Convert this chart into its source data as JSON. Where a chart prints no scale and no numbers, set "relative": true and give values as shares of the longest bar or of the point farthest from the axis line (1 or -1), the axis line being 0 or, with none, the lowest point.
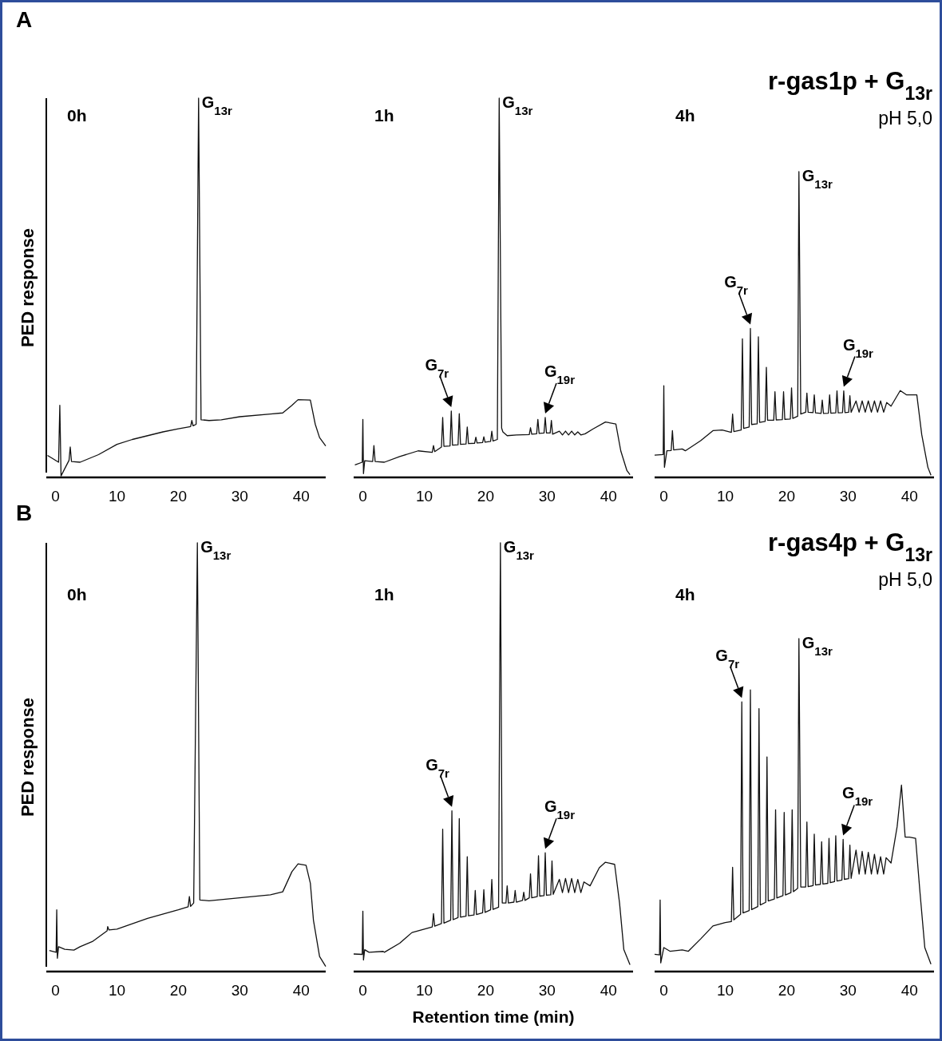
{
  "chart_data": [
    {
      "type": "line",
      "title": "0h",
      "ylabel": "PED response",
      "relative": true,
      "tick_labels": "x",
      "xlim": [
        -1.5,
        44
      ],
      "xticks": [
        0,
        10,
        20,
        30,
        40
      ],
      "series": [
        {
          "color": "#111111",
          "x": [
            -1.3,
            -0.5,
            0.5,
            0.7,
            0.9,
            2.2,
            2.4,
            2.6,
            4,
            7,
            10,
            12.5,
            15,
            17.5,
            20,
            22,
            22.2,
            22.4,
            22.9,
            23.3,
            23.7,
            25,
            27,
            30,
            35,
            37,
            38.5,
            39.5,
            41.5,
            42.3,
            43,
            44
          ],
          "values": [
            0.058,
            0.05,
            0.04,
            0.19,
            0.004,
            0.045,
            0.08,
            0.042,
            0.04,
            0.06,
            0.087,
            0.1,
            0.11,
            0.12,
            0.128,
            0.134,
            0.15,
            0.136,
            0.14,
            1.0,
            0.152,
            0.15,
            0.152,
            0.16,
            0.167,
            0.17,
            0.19,
            0.205,
            0.204,
            0.14,
            0.105,
            0.083
          ]
        }
      ],
      "annotations": [
        "A",
        {
          "text": "G$_{13r}$",
          "x": 23.3,
          "y": 1.0
        }
      ]
    },
    {
      "type": "line",
      "title": "1h",
      "relative": true,
      "tick_labels": "x",
      "xlim": [
        -1.5,
        44
      ],
      "xticks": [
        0,
        10,
        20,
        30,
        40
      ],
      "series": [
        {
          "color": "#111111",
          "x": [
            -1.3,
            -0.1,
            0,
            0.1,
            0.3,
            1.6,
            1.8,
            2,
            3.5,
            6,
            9,
            11.3,
            11.5,
            11.7,
            12.8,
            13,
            13.2,
            14.2,
            14.4,
            14.6,
            15.5,
            15.7,
            15.9,
            16.8,
            17,
            17.2,
            18.2,
            18.4,
            18.6,
            19.5,
            19.7,
            19.9,
            20.8,
            21,
            21.2,
            21.9,
            22.2,
            22.6,
            22.8,
            23.5,
            25,
            27.1,
            27.3,
            27.5,
            28.3,
            28.5,
            28.7,
            29.5,
            29.7,
            29.9,
            30.5,
            30.7,
            30.9,
            32,
            32.5,
            33,
            33.5,
            34,
            34.5,
            35,
            35.5,
            36.2,
            37.5,
            39.5,
            41.2,
            42,
            43,
            43.5
          ],
          "values": [
            0.033,
            0.04,
            0.153,
            0.01,
            0.044,
            0.042,
            0.084,
            0.042,
            0.04,
            0.055,
            0.07,
            0.066,
            0.084,
            0.068,
            0.08,
            0.158,
            0.082,
            0.083,
            0.175,
            0.085,
            0.086,
            0.168,
            0.087,
            0.088,
            0.133,
            0.089,
            0.09,
            0.106,
            0.091,
            0.092,
            0.107,
            0.093,
            0.095,
            0.122,
            0.096,
            0.1,
            1.0,
            0.13,
            0.12,
            0.11,
            0.112,
            0.113,
            0.131,
            0.114,
            0.115,
            0.153,
            0.116,
            0.117,
            0.158,
            0.117,
            0.117,
            0.15,
            0.114,
            0.122,
            0.112,
            0.122,
            0.112,
            0.122,
            0.112,
            0.12,
            0.112,
            0.115,
            0.128,
            0.146,
            0.141,
            0.07,
            0.018,
            0.007
          ]
        }
      ],
      "annotations": [
        {
          "text": "G$_{13r}$",
          "x": 22.2,
          "y": 1.0
        },
        {
          "text": "G$_{7r}$",
          "x": 14.4,
          "y": 0.175
        },
        {
          "text": "G$_{19r}$",
          "x": 29.7,
          "y": 0.158
        }
      ]
    },
    {
      "type": "line",
      "title": "4h",
      "relative": true,
      "tick_labels": "x",
      "xlim": [
        -1.5,
        44
      ],
      "xticks": [
        0,
        10,
        20,
        30,
        40
      ],
      "series": [
        {
          "color": "#111111",
          "x": [
            -1.5,
            -0.1,
            0,
            0.1,
            0.5,
            1.2,
            1.4,
            1.6,
            3,
            3.5,
            6,
            8,
            9.5,
            11,
            11.2,
            11.4,
            12.6,
            12.8,
            13,
            13.9,
            14.1,
            14.3,
            15.2,
            15.4,
            15.6,
            16.5,
            16.7,
            16.9,
            17.9,
            18.1,
            18.3,
            19.3,
            19.5,
            19.7,
            20.6,
            20.8,
            21,
            21.8,
            22,
            22.3,
            23.1,
            23.3,
            23.5,
            24.3,
            24.5,
            24.7,
            25.6,
            25.8,
            26,
            26.8,
            27,
            27.2,
            28,
            28.2,
            28.4,
            29.1,
            29.3,
            29.5,
            30.1,
            30.3,
            30.5,
            31.3,
            31.8,
            32.3,
            32.8,
            33.3,
            33.8,
            34.3,
            34.8,
            35.3,
            35.8,
            36.3,
            37,
            38.5,
            39.5,
            41.2,
            42,
            43,
            43.5
          ],
          "values": [
            0.073,
            0.075,
            0.3,
            0.033,
            0.087,
            0.088,
            0.153,
            0.09,
            0.093,
            0.087,
            0.12,
            0.153,
            0.155,
            0.147,
            0.207,
            0.15,
            0.155,
            0.453,
            0.16,
            0.165,
            0.487,
            0.173,
            0.175,
            0.46,
            0.18,
            0.183,
            0.36,
            0.187,
            0.187,
            0.28,
            0.188,
            0.189,
            0.28,
            0.19,
            0.191,
            0.293,
            0.193,
            0.2,
            1.0,
            0.207,
            0.213,
            0.276,
            0.213,
            0.212,
            0.27,
            0.211,
            0.209,
            0.253,
            0.209,
            0.21,
            0.27,
            0.21,
            0.211,
            0.283,
            0.211,
            0.212,
            0.283,
            0.212,
            0.213,
            0.267,
            0.213,
            0.25,
            0.213,
            0.25,
            0.213,
            0.25,
            0.213,
            0.25,
            0.213,
            0.25,
            0.213,
            0.245,
            0.233,
            0.284,
            0.27,
            0.27,
            0.14,
            0.033,
            0.007
          ]
        }
      ],
      "annotations": [
        "r-gas1p + G$_{13r}$",
        "pH 5,0",
        {
          "text": "G$_{13r}$",
          "x": 22,
          "y": 1.0
        },
        {
          "text": "G$_{7r}$",
          "x": 14.1,
          "y": 0.487
        },
        {
          "text": "G$_{19r}$",
          "x": 29.3,
          "y": 0.283
        }
      ]
    },
    {
      "type": "line",
      "title": "0h",
      "ylabel": "PED response",
      "relative": true,
      "tick_labels": "x",
      "xlim": [
        -1.5,
        44
      ],
      "xticks": [
        0,
        10,
        20,
        30,
        40
      ],
      "series": [
        {
          "color": "#111111",
          "x": [
            -1,
            0.1,
            0.2,
            0.3,
            0.5,
            1.5,
            3,
            4,
            6,
            8.4,
            8.5,
            8.7,
            10,
            15,
            20,
            21.6,
            21.8,
            22,
            22.5,
            23.1,
            23.5,
            25,
            30,
            35,
            37,
            38.5,
            39.5,
            40.8,
            41.5,
            42,
            43,
            44
          ],
          "values": [
            0.049,
            0.045,
            0.144,
            0.031,
            0.058,
            0.052,
            0.05,
            0.058,
            0.07,
            0.095,
            0.105,
            0.097,
            0.099,
            0.124,
            0.144,
            0.151,
            0.175,
            0.152,
            0.16,
            1.0,
            0.167,
            0.165,
            0.172,
            0.179,
            0.186,
            0.233,
            0.251,
            0.248,
            0.206,
            0.12,
            0.035,
            0.012
          ]
        }
      ],
      "annotations": [
        "B",
        {
          "text": "G$_{13r}$",
          "x": 23.1,
          "y": 1.0
        }
      ]
    },
    {
      "type": "line",
      "title": "1h",
      "xlabel": "Retention time (min)",
      "relative": true,
      "tick_labels": "x",
      "xlim": [
        -1.5,
        44
      ],
      "xticks": [
        0,
        10,
        20,
        30,
        40
      ],
      "series": [
        {
          "color": "#111111",
          "x": [
            -1.5,
            -0.1,
            0,
            0.1,
            0.3,
            1,
            3.3,
            3.5,
            6,
            8,
            10,
            11.3,
            11.5,
            11.7,
            12.8,
            13,
            13.2,
            14.3,
            14.5,
            14.7,
            15.5,
            15.7,
            15.9,
            16.8,
            17,
            17.2,
            18.1,
            18.3,
            18.5,
            19.5,
            19.7,
            19.9,
            20.8,
            21,
            21.2,
            22.1,
            22.4,
            22.7,
            23.3,
            23.5,
            23.7,
            24.6,
            24.8,
            25,
            26,
            26.2,
            26.4,
            27.1,
            27.3,
            27.5,
            28.4,
            28.6,
            28.8,
            29.5,
            29.7,
            29.9,
            30.6,
            30.8,
            31,
            32,
            32.5,
            33,
            33.5,
            34,
            34.5,
            35,
            35.5,
            36,
            37,
            38.5,
            39.5,
            41,
            41.8,
            42.5,
            43.5
          ],
          "values": [
            0.041,
            0.04,
            0.141,
            0.027,
            0.051,
            0.045,
            0.047,
            0.045,
            0.066,
            0.091,
            0.099,
            0.104,
            0.135,
            0.106,
            0.112,
            0.332,
            0.113,
            0.12,
            0.375,
            0.121,
            0.126,
            0.357,
            0.127,
            0.129,
            0.268,
            0.13,
            0.132,
            0.189,
            0.133,
            0.137,
            0.191,
            0.138,
            0.144,
            0.215,
            0.145,
            0.15,
            1.0,
            0.16,
            0.16,
            0.2,
            0.16,
            0.162,
            0.189,
            0.162,
            0.166,
            0.185,
            0.166,
            0.172,
            0.228,
            0.172,
            0.175,
            0.27,
            0.176,
            0.177,
            0.277,
            0.178,
            0.179,
            0.258,
            0.18,
            0.215,
            0.184,
            0.217,
            0.184,
            0.217,
            0.184,
            0.215,
            0.184,
            0.209,
            0.2,
            0.242,
            0.255,
            0.25,
            0.16,
            0.051,
            0.016
          ]
        }
      ],
      "annotations": [
        {
          "text": "G$_{13r}$",
          "x": 22.4,
          "y": 1.0
        },
        {
          "text": "G$_{7r}$",
          "x": 14.5,
          "y": 0.375
        },
        {
          "text": "G$_{19r}$",
          "x": 29.7,
          "y": 0.277
        }
      ]
    },
    {
      "type": "line",
      "title": "4h",
      "relative": true,
      "tick_labels": "x",
      "xlim": [
        -1.5,
        44
      ],
      "xticks": [
        0,
        10,
        20,
        30,
        40
      ],
      "series": [
        {
          "color": "#111111",
          "x": [
            -1.5,
            -0.7,
            -0.6,
            -0.5,
            0,
            1,
            3,
            4,
            6,
            8,
            10,
            11,
            11.2,
            11.4,
            12.5,
            12.7,
            12.9,
            13.9,
            14.1,
            14.3,
            15.3,
            15.5,
            15.7,
            16.6,
            16.8,
            17,
            18,
            18.2,
            18.4,
            19.4,
            19.6,
            19.8,
            20.7,
            20.9,
            21.1,
            21.8,
            22,
            22.3,
            23.1,
            23.3,
            23.5,
            24.3,
            24.5,
            24.7,
            25.5,
            25.7,
            25.9,
            26.7,
            26.9,
            27.1,
            27.8,
            28,
            28.2,
            29,
            29.2,
            29.4,
            30.1,
            30.3,
            30.5,
            31.3,
            31.8,
            32.3,
            32.8,
            33.3,
            33.8,
            34.3,
            34.8,
            35.3,
            35.8,
            36.2,
            37,
            38,
            38.7,
            39.3,
            40,
            41,
            41.7,
            42.5,
            43.5
          ],
          "values": [
            0.052,
            0.05,
            0.215,
            0.026,
            0.072,
            0.061,
            0.065,
            0.061,
            0.098,
            0.137,
            0.147,
            0.15,
            0.313,
            0.155,
            0.172,
            0.81,
            0.176,
            0.183,
            0.846,
            0.186,
            0.195,
            0.79,
            0.2,
            0.208,
            0.645,
            0.212,
            0.218,
            0.486,
            0.221,
            0.228,
            0.478,
            0.23,
            0.237,
            0.486,
            0.24,
            0.25,
            1.0,
            0.254,
            0.254,
            0.449,
            0.255,
            0.258,
            0.413,
            0.26,
            0.262,
            0.39,
            0.263,
            0.265,
            0.4,
            0.267,
            0.27,
            0.408,
            0.272,
            0.275,
            0.397,
            0.277,
            0.279,
            0.38,
            0.28,
            0.365,
            0.293,
            0.361,
            0.293,
            0.358,
            0.293,
            0.352,
            0.293,
            0.345,
            0.293,
            0.342,
            0.326,
            0.436,
            0.56,
            0.404,
            0.404,
            0.4,
            0.241,
            0.072,
            0.022
          ]
        }
      ],
      "annotations": [
        "r-gas4p + G$_{13r}$",
        "pH 5,0",
        {
          "text": "G$_{13r}$",
          "x": 22,
          "y": 1.0
        },
        {
          "text": "G$_{7r}$",
          "x": 12.7,
          "y": 0.81
        },
        {
          "text": "G$_{19r}$",
          "x": 29.2,
          "y": 0.397
        }
      ]
    }
  ]
}
